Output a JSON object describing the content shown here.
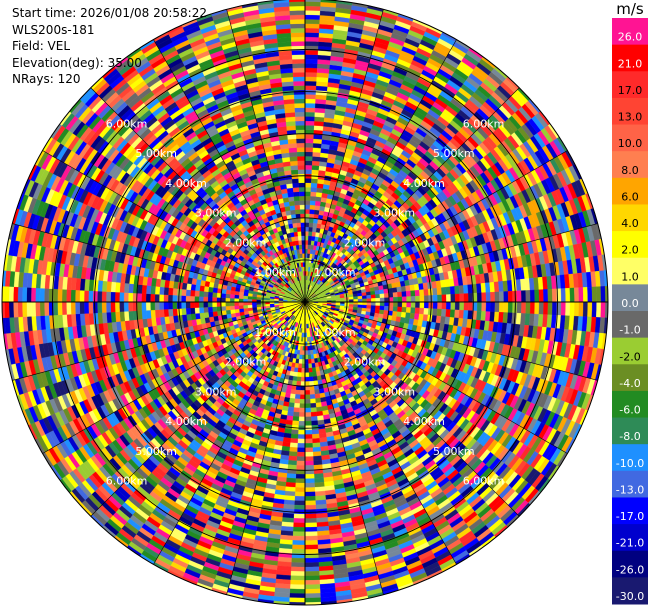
{
  "header": {
    "start_time": "Start time: 2026/01/08 20:58:22",
    "instrument": "WLS200s-181",
    "field": "Field: VEL",
    "elevation": "Elevation(deg): 35.00",
    "nrays": "NRays: 120"
  },
  "colorbar": {
    "unit": "m/s",
    "levels": [
      {
        "label": "26.0",
        "color": "#ff1493"
      },
      {
        "label": "21.0",
        "color": "#ff0000"
      },
      {
        "label": "17.0",
        "color": "#ff2a2a"
      },
      {
        "label": "13.0",
        "color": "#ff4433"
      },
      {
        "label": "10.0",
        "color": "#ff6347"
      },
      {
        "label": "8.0",
        "color": "#ff7f50"
      },
      {
        "label": "6.0",
        "color": "#ffa500"
      },
      {
        "label": "4.0",
        "color": "#ffd700"
      },
      {
        "label": "2.0",
        "color": "#ffff00"
      },
      {
        "label": "1.0",
        "color": "#ffff66"
      },
      {
        "label": "0.0",
        "color": "#778899"
      },
      {
        "label": "-1.0",
        "color": "#696969"
      },
      {
        "label": "-2.0",
        "color": "#9acd32"
      },
      {
        "label": "-4.0",
        "color": "#6b8e23"
      },
      {
        "label": "-6.0",
        "color": "#228b22"
      },
      {
        "label": "-8.0",
        "color": "#2e8b57"
      },
      {
        "label": "-10.0",
        "color": "#1e90ff"
      },
      {
        "label": "-13.0",
        "color": "#4169e1"
      },
      {
        "label": "-17.0",
        "color": "#0000ff"
      },
      {
        "label": "-21.0",
        "color": "#0000cd"
      },
      {
        "label": "-26.0",
        "color": "#000080"
      },
      {
        "label": "-30.0",
        "color": "#191970"
      }
    ]
  },
  "chart_data": {
    "type": "heatmap",
    "projection": "polar-ppi",
    "field": "VEL",
    "n_rays": 120,
    "range_rings_km": [
      1,
      2,
      3,
      4,
      5,
      6
    ],
    "ring_labels": [
      "1.00km",
      "2.00km",
      "3.00km",
      "4.00km",
      "5.00km",
      "6.00km"
    ],
    "max_range_km": 7.2,
    "inner_pattern": {
      "north_sector_color": "#9acd32",
      "south_sector_color": "#ffff00",
      "inner_radius_km": 1.0
    }
  }
}
